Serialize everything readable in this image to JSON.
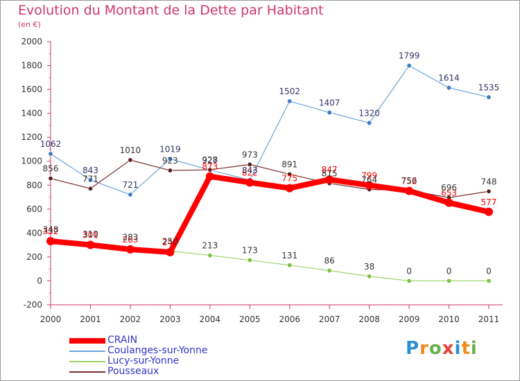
{
  "title": "Evolution du Montant de la Dette par Habitant",
  "subtitle": "(en €)",
  "logo": "Proxiti",
  "chart_data": {
    "type": "line",
    "categories": [
      "2000",
      "2001",
      "2002",
      "2003",
      "2004",
      "2005",
      "2006",
      "2007",
      "2008",
      "2009",
      "2010",
      "2011"
    ],
    "ylim": [
      -200,
      2000
    ],
    "yticks": [
      -200,
      0,
      200,
      400,
      600,
      800,
      1000,
      1200,
      1400,
      1600,
      1800,
      2000
    ],
    "grid": false,
    "legend": "bottom-left",
    "series": [
      {
        "name": "CRAIN",
        "color": "#ff0000",
        "marker": "#ff0000",
        "values": [
          332,
          301,
          263,
          240,
          873,
          822,
          775,
          847,
          799,
          752,
          653,
          577
        ],
        "width": 8,
        "labelColor": "#ff0000"
      },
      {
        "name": "Coulanges-sur-Yonne",
        "color": "#6aa3d8",
        "marker": "#3a7bc8",
        "values": [
          1062,
          843,
          721,
          1019,
          927,
          843,
          1502,
          1407,
          1320,
          1799,
          1614,
          1535
        ],
        "width": 1.2,
        "labelColor": "#333366"
      },
      {
        "name": "Lucy-sur-Yonne",
        "color": "#9dd36b",
        "marker": "#7cc242",
        "values": [
          348,
          310,
          283,
          250,
          213,
          173,
          131,
          86,
          38,
          0,
          0,
          0
        ],
        "width": 1.2,
        "labelColor": "#333333"
      },
      {
        "name": "Pousseaux",
        "color": "#7a2d2d",
        "marker": "#5a1f1f",
        "values": [
          856,
          771,
          1010,
          923,
          928,
          973,
          891,
          815,
          764,
          756,
          696,
          748
        ],
        "width": 1.2,
        "labelColor": "#333333"
      }
    ]
  }
}
